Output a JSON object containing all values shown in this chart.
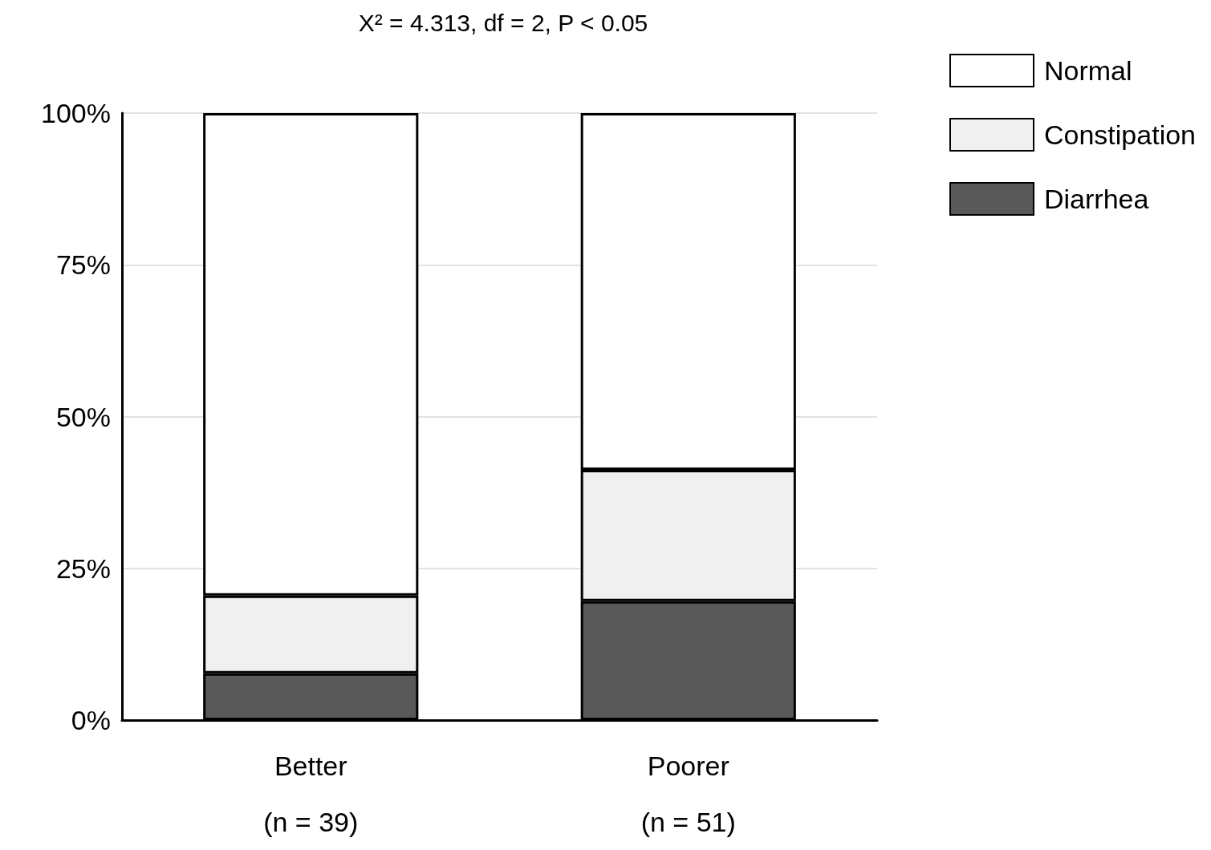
{
  "chart_data": {
    "type": "bar",
    "title": "X² = 4.313, df = 2, P < 0.05",
    "stacked": true,
    "categories": [
      "Better\n(n = 39)",
      "Poorer\n(n = 51)"
    ],
    "series": [
      {
        "name": "Diarrhea",
        "color": "#595959",
        "values": [
          7.7,
          19.6
        ]
      },
      {
        "name": "Constipation",
        "color": "#f0f0f0",
        "values": [
          12.8,
          21.6
        ]
      },
      {
        "name": "Normal",
        "color": "#ffffff",
        "values": [
          79.5,
          58.8
        ]
      }
    ],
    "ylim": [
      0,
      100
    ],
    "yticks": [
      {
        "value": 0,
        "label": "0%"
      },
      {
        "value": 25,
        "label": "25%"
      },
      {
        "value": 50,
        "label": "50%"
      },
      {
        "value": 75,
        "label": "75%"
      },
      {
        "value": 100,
        "label": "100%"
      }
    ],
    "grid": "y",
    "legend": "top right"
  }
}
